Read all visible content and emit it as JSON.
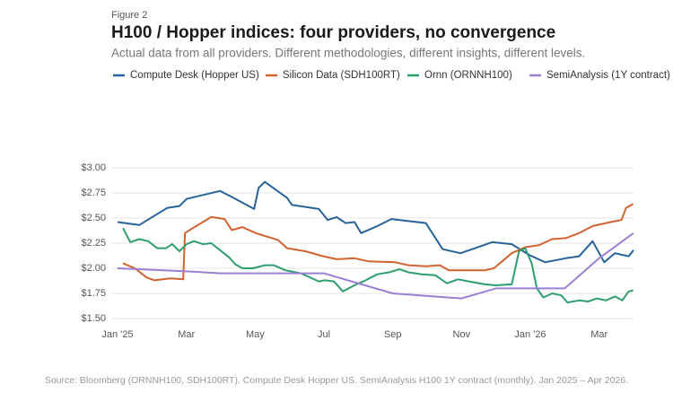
{
  "figure_label": "Figure 2",
  "chart_data": {
    "type": "line",
    "title": "H100 / Hopper indices: four providers, no convergence",
    "subtitle": "Actual data from all providers. Different methodologies, different insights, different levels.",
    "source": "Source: Bloomberg (ORNNH100, SDH100RT). Compute Desk Hopper US. SemiAnalysis H100 1Y contract (monthly). Jan 2025 – Apr 2026.",
    "xlim": [
      0,
      15
    ],
    "xticks": [
      {
        "value": 0,
        "label": "Jan '25"
      },
      {
        "value": 2,
        "label": "Mar"
      },
      {
        "value": 4,
        "label": "May"
      },
      {
        "value": 6,
        "label": "Jul"
      },
      {
        "value": 8,
        "label": "Sep"
      },
      {
        "value": 10,
        "label": "Nov"
      },
      {
        "value": 12,
        "label": "Jan '26"
      },
      {
        "value": 14,
        "label": "Mar"
      }
    ],
    "ylim": [
      1.5,
      3.0
    ],
    "yticks": [
      {
        "value": 1.5,
        "label": "$1.50"
      },
      {
        "value": 1.75,
        "label": "$1.75"
      },
      {
        "value": 2.0,
        "label": "$2.00"
      },
      {
        "value": 2.25,
        "label": "$2.25"
      },
      {
        "value": 2.5,
        "label": "$2.50"
      },
      {
        "value": 2.75,
        "label": "$2.75"
      },
      {
        "value": 3.0,
        "label": "$3.00"
      }
    ],
    "grid": true,
    "series": [
      {
        "name": "Compute Desk (Hopper US)",
        "color": "#27629a",
        "x": [
          0,
          0.63,
          1.44,
          1.8,
          2.01,
          2.98,
          3.32,
          3.97,
          4.1,
          4.28,
          4.93,
          5.07,
          5.85,
          6.11,
          6.37,
          6.63,
          6.89,
          7.08,
          7.55,
          7.96,
          8.96,
          9.45,
          9.97,
          10.89,
          11.46,
          11.98,
          12.43,
          13.03,
          13.42,
          13.81,
          14.15,
          14.46,
          14.86,
          15
        ],
        "values": [
          2.46,
          2.43,
          2.6,
          2.62,
          2.69,
          2.77,
          2.71,
          2.59,
          2.8,
          2.86,
          2.7,
          2.63,
          2.59,
          2.48,
          2.51,
          2.45,
          2.46,
          2.35,
          2.42,
          2.49,
          2.45,
          2.19,
          2.15,
          2.26,
          2.24,
          2.13,
          2.06,
          2.1,
          2.12,
          2.27,
          2.06,
          2.15,
          2.12,
          2.18
        ]
      },
      {
        "name": "Silicon Data (SDH100RT)",
        "color": "#d2622f",
        "x": [
          0.16,
          0.5,
          0.84,
          1.07,
          1.54,
          1.91,
          1.96,
          2.19,
          2.72,
          3.11,
          3.32,
          3.63,
          4.02,
          4.67,
          4.93,
          5.46,
          5.98,
          6.37,
          6.89,
          7.28,
          8.07,
          8.46,
          8.98,
          9.37,
          9.63,
          10.68,
          10.94,
          11.46,
          11.85,
          12.25,
          12.64,
          13.03,
          13.42,
          13.81,
          14.33,
          14.65,
          14.78,
          14.99
        ],
        "values": [
          2.05,
          2.0,
          1.91,
          1.88,
          1.9,
          1.89,
          2.35,
          2.4,
          2.51,
          2.49,
          2.38,
          2.41,
          2.35,
          2.28,
          2.2,
          2.17,
          2.12,
          2.09,
          2.1,
          2.07,
          2.06,
          2.03,
          2.02,
          2.03,
          1.98,
          1.98,
          2.0,
          2.15,
          2.21,
          2.23,
          2.29,
          2.3,
          2.35,
          2.42,
          2.46,
          2.48,
          2.6,
          2.64
        ]
      },
      {
        "name": "Ornn (ORNNH100)",
        "color": "#2e9e6e",
        "x": [
          0.16,
          0.37,
          0.63,
          0.89,
          1.15,
          1.41,
          1.59,
          1.8,
          2.01,
          2.22,
          2.48,
          2.72,
          2.98,
          3.24,
          3.42,
          3.63,
          3.94,
          4.28,
          4.54,
          4.88,
          5.33,
          5.59,
          5.85,
          6.03,
          6.29,
          6.55,
          6.89,
          7.15,
          7.55,
          7.89,
          8.2,
          8.46,
          8.85,
          9.24,
          9.58,
          9.9,
          10.21,
          10.68,
          10.99,
          11.46,
          11.67,
          11.85,
          12.04,
          12.19,
          12.38,
          12.64,
          12.9,
          13.08,
          13.42,
          13.68,
          13.94,
          14.2,
          14.46,
          14.67,
          14.86,
          14.99
        ],
        "values": [
          2.4,
          2.26,
          2.29,
          2.27,
          2.2,
          2.2,
          2.24,
          2.17,
          2.24,
          2.27,
          2.24,
          2.25,
          2.18,
          2.11,
          2.04,
          2.0,
          2.0,
          2.03,
          2.03,
          1.98,
          1.95,
          1.91,
          1.87,
          1.88,
          1.87,
          1.77,
          1.83,
          1.87,
          1.94,
          1.96,
          1.99,
          1.96,
          1.94,
          1.93,
          1.85,
          1.89,
          1.87,
          1.84,
          1.83,
          1.84,
          2.17,
          2.2,
          2.05,
          1.8,
          1.71,
          1.75,
          1.73,
          1.66,
          1.68,
          1.67,
          1.7,
          1.68,
          1.72,
          1.68,
          1.77,
          1.78
        ]
      },
      {
        "name": "SemiAnalysis (1Y contract)",
        "color": "#9b7fd0",
        "x": [
          0,
          2,
          3,
          6,
          8,
          10,
          11,
          13,
          14,
          15
        ],
        "values": [
          2.0,
          1.97,
          1.95,
          1.95,
          1.75,
          1.7,
          1.8,
          1.8,
          2.1,
          2.35
        ]
      }
    ]
  }
}
